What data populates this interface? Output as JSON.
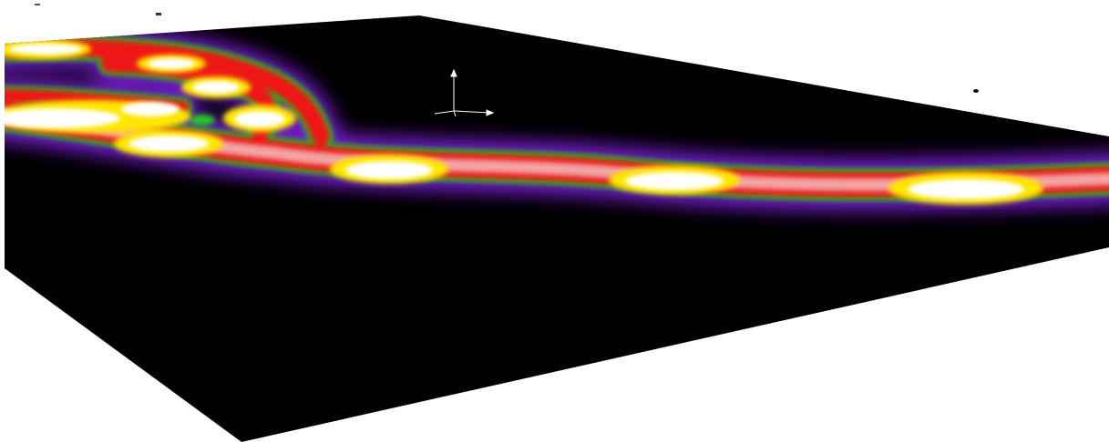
{
  "scene": {
    "background_color": "#ffffff",
    "slab_color": "#000000",
    "colormap": {
      "outer_glow": "#7a1fd6",
      "band_green": "#22cc22",
      "band_red": "#ee1111",
      "band_yellow": "#ffe600",
      "core_white": "#ffffff"
    },
    "hotspot_count": 10,
    "axis_triad_color": "#ffffff",
    "axis_triad_icon": "xyz-axes-gizmo-icon"
  }
}
